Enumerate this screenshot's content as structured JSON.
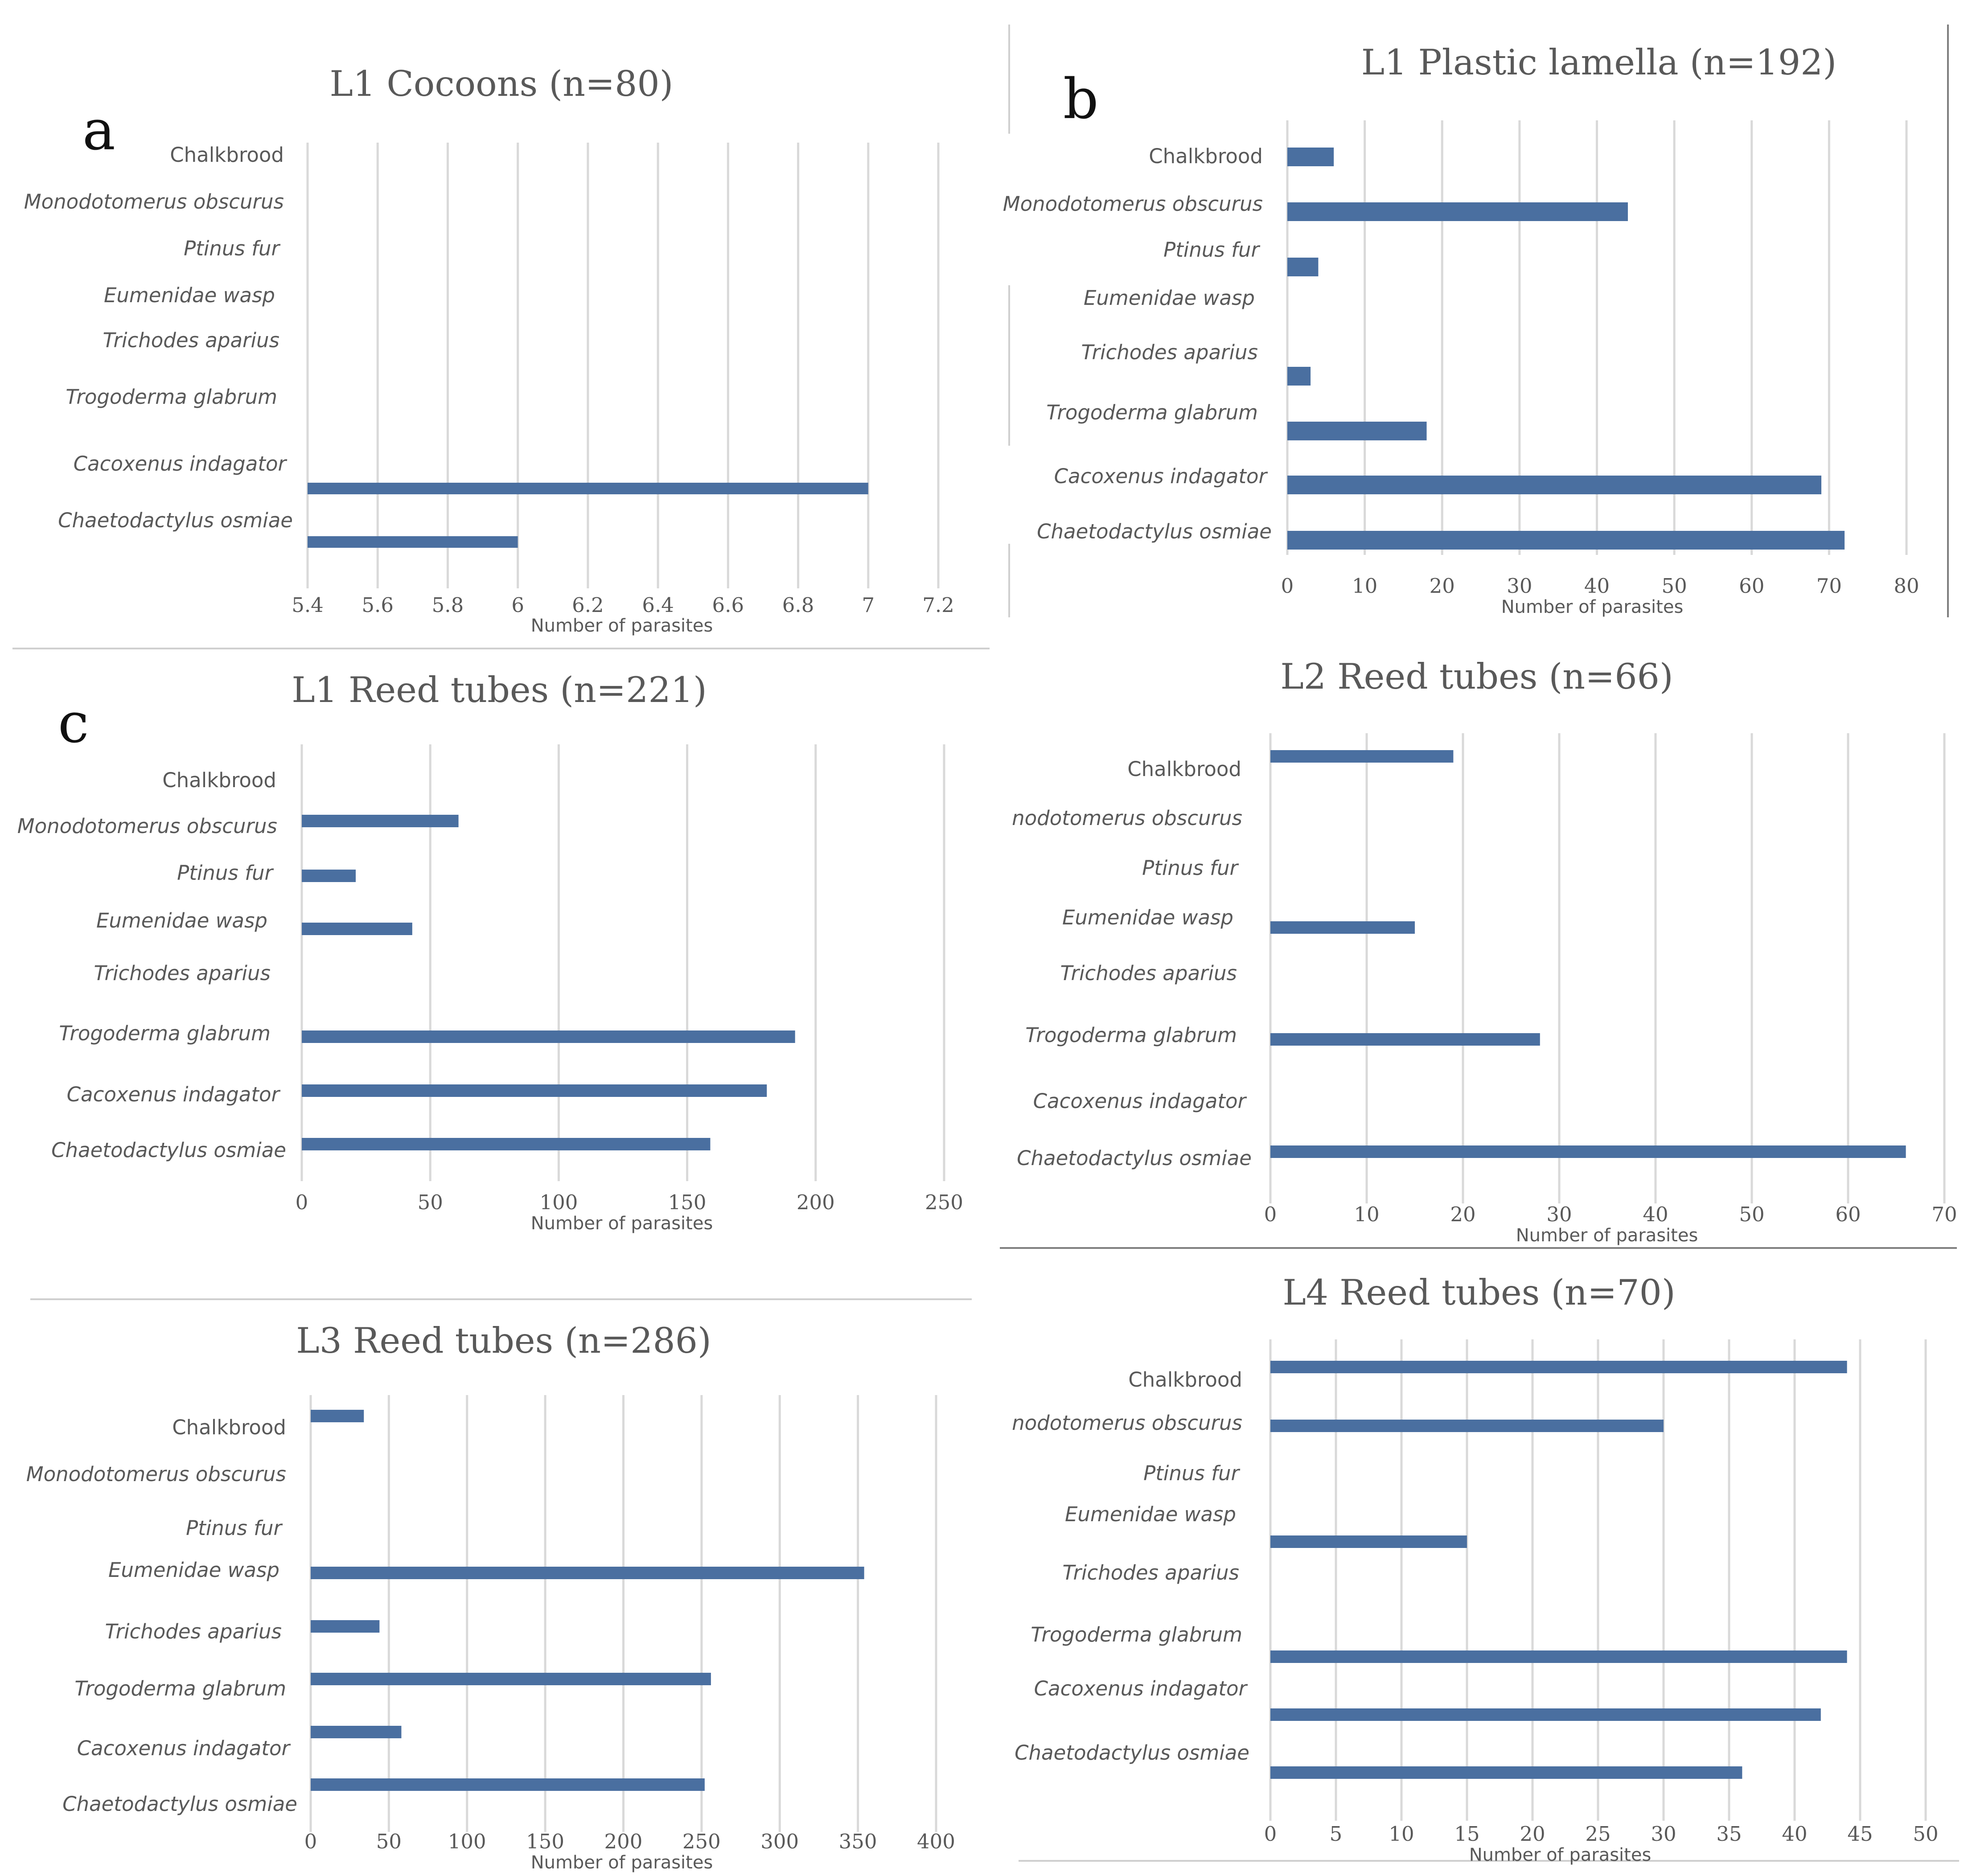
{
  "figure": {
    "bar_color": "#4a6fa0",
    "panel_letters": [
      "a",
      "b",
      "c"
    ]
  },
  "chart_data": [
    {
      "type": "bar",
      "orientation": "horizontal",
      "title": "L1 Cocoons (n=80)",
      "xlabel": "Number of parasites",
      "xlim": [
        5.4,
        7.2
      ],
      "xticks": [
        "5.4",
        "5.6",
        "5.8",
        "6",
        "6.2",
        "6.4",
        "6.6",
        "6.8",
        "7",
        "7.2"
      ],
      "categories": [
        "Chalkbrood",
        "Monodotomerus obscurus",
        "Ptinus fur",
        "Eumenidae wasp",
        "Trichodes aparius",
        "Trogoderma glabrum",
        "Cacoxenus indagator",
        "Chaetodactylus osmiae"
      ],
      "values": [
        null,
        null,
        null,
        null,
        null,
        null,
        7,
        6
      ]
    },
    {
      "type": "bar",
      "orientation": "horizontal",
      "title": "L1 Plastic lamella (n=192)",
      "xlabel": "Number of parasites",
      "xlim": [
        0,
        80
      ],
      "xticks": [
        "0",
        "10",
        "20",
        "30",
        "40",
        "50",
        "60",
        "70",
        "80"
      ],
      "categories": [
        "Chalkbrood",
        "Monodotomerus obscurus",
        "Ptinus fur",
        "Eumenidae wasp",
        "Trichodes aparius",
        "Trogoderma glabrum",
        "Cacoxenus indagator",
        "Chaetodactylus osmiae"
      ],
      "values": [
        6,
        44,
        4,
        0,
        3,
        18,
        69,
        72
      ]
    },
    {
      "type": "bar",
      "orientation": "horizontal",
      "title": "L1 Reed tubes (n=221)",
      "xlabel": "Number of parasites",
      "xlim": [
        0,
        250
      ],
      "xticks": [
        "0",
        "50",
        "100",
        "150",
        "200",
        "250"
      ],
      "categories": [
        "Chalkbrood",
        "Monodotomerus obscurus",
        "Ptinus fur",
        "Eumenidae wasp",
        "Trichodes aparius",
        "Trogoderma glabrum",
        "Cacoxenus indagator",
        "Chaetodactylus osmiae"
      ],
      "values": [
        0,
        61,
        21,
        43,
        0,
        192,
        181,
        159
      ]
    },
    {
      "type": "bar",
      "orientation": "horizontal",
      "title": "L2 Reed tubes (n=66)",
      "xlabel": "Number of parasites",
      "xlim": [
        0,
        70
      ],
      "xticks": [
        "0",
        "10",
        "20",
        "30",
        "40",
        "50",
        "60",
        "70"
      ],
      "categories": [
        "Chalkbrood",
        "nodotomerus obscurus",
        "Ptinus fur",
        "Eumenidae wasp",
        "Trichodes aparius",
        "Trogoderma glabrum",
        "Cacoxenus indagator",
        "Chaetodactylus osmiae"
      ],
      "values": [
        19,
        0,
        0,
        15,
        0,
        28,
        0,
        66
      ]
    },
    {
      "type": "bar",
      "orientation": "horizontal",
      "title": "L3 Reed tubes (n=286)",
      "xlabel": "Number of parasites",
      "xlim": [
        0,
        400
      ],
      "xticks": [
        "0",
        "50",
        "100",
        "150",
        "200",
        "250",
        "300",
        "350",
        "400"
      ],
      "categories": [
        "Chalkbrood",
        "Monodotomerus obscurus",
        "Ptinus fur",
        "Eumenidae wasp",
        "Trichodes aparius",
        "Trogoderma glabrum",
        "Cacoxenus indagator",
        "Chaetodactylus osmiae"
      ],
      "values": [
        34,
        0,
        0,
        354,
        44,
        256,
        58,
        252
      ]
    },
    {
      "type": "bar",
      "orientation": "horizontal",
      "title": "L4 Reed tubes (n=70)",
      "xlabel": "Number of parasites",
      "xlim": [
        0,
        50
      ],
      "xticks": [
        "0",
        "5",
        "10",
        "15",
        "20",
        "25",
        "30",
        "35",
        "40",
        "45",
        "50"
      ],
      "categories": [
        "Chalkbrood",
        "nodotomerus obscurus",
        "Ptinus fur",
        "Eumenidae wasp",
        "Trichodes aparius",
        "Trogoderma glabrum",
        "Cacoxenus indagator",
        "Chaetodactylus osmiae"
      ],
      "values": [
        44,
        30,
        0,
        15,
        0,
        44,
        42,
        36
      ]
    }
  ]
}
